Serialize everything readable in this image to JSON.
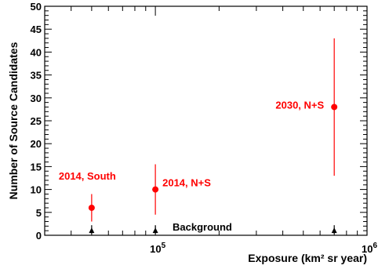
{
  "chart_data": {
    "type": "scatter",
    "title": "",
    "xlabel": "Exposure (km² sr year)",
    "ylabel": "Number of Source Candidates",
    "xscale": "log",
    "xlim": [
      30000,
      1000000
    ],
    "ylim": [
      0,
      50
    ],
    "grid": false,
    "x_ticks": [
      {
        "value": 100000,
        "base": "10",
        "exp": "5"
      },
      {
        "value": 1000000,
        "base": "10",
        "exp": "6"
      }
    ],
    "y_ticks": [
      {
        "value": 0,
        "label": "0"
      },
      {
        "value": 5,
        "label": "5"
      },
      {
        "value": 10,
        "label": "10"
      },
      {
        "value": 15,
        "label": "15"
      },
      {
        "value": 20,
        "label": "20"
      },
      {
        "value": 25,
        "label": "25"
      },
      {
        "value": 30,
        "label": "30"
      },
      {
        "value": 35,
        "label": "35"
      },
      {
        "value": 40,
        "label": "40"
      },
      {
        "value": 45,
        "label": "45"
      },
      {
        "value": 50,
        "label": "50"
      }
    ],
    "series": [
      {
        "color": "#ff0000",
        "marker": "circle",
        "points": [
          {
            "x": 50000,
            "y": 6,
            "err_low": 3,
            "err_high": 9,
            "label": "2014, South"
          },
          {
            "x": 100000,
            "y": 10,
            "err_low": 4.5,
            "err_high": 15.5,
            "label": "2014, N+S"
          },
          {
            "x": 700000,
            "y": 28,
            "err_low": 13,
            "err_high": 43,
            "label": "2030, N+S"
          }
        ]
      },
      {
        "color": "#000000",
        "marker": "triangle",
        "label": "Background",
        "points": [
          {
            "x": 50000,
            "y": 1,
            "err_low": 0.3,
            "err_high": 2.2
          },
          {
            "x": 100000,
            "y": 1,
            "err_low": 0.3,
            "err_high": 2.2
          },
          {
            "x": 700000,
            "y": 1,
            "err_low": 0.3,
            "err_high": 2.2
          }
        ]
      }
    ]
  }
}
